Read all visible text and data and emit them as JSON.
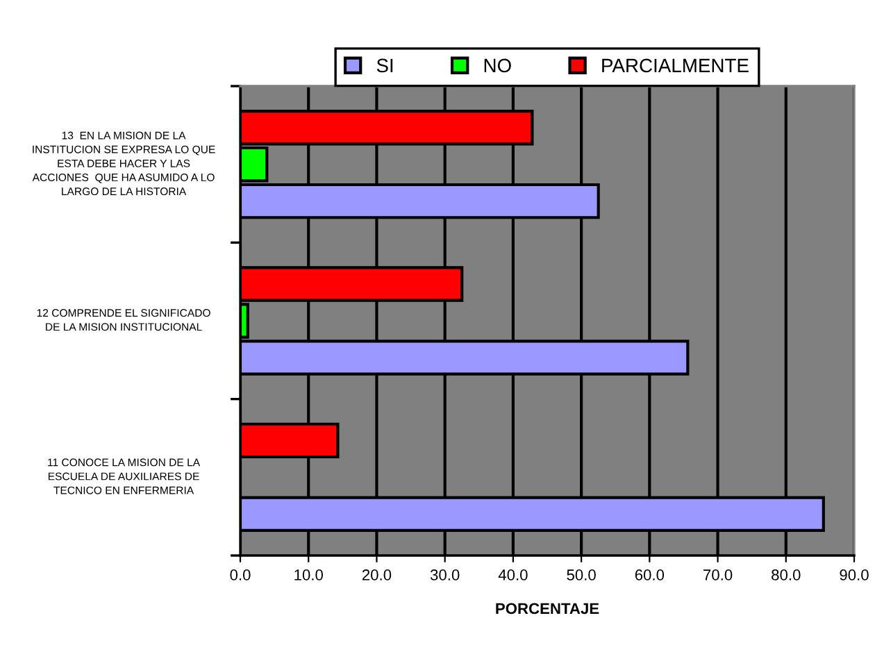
{
  "chart_data": {
    "type": "bar",
    "orientation": "horizontal",
    "xlabel": "PORCENTAJE",
    "categories": [
      "13  EN LA MISION DE LA\nINSTITUCION SE EXPRESA LO QUE\nESTA DEBE HACER Y LAS\nACCIONES  QUE HA ASUMIDO A LO\nLARGO DE LA HISTORIA",
      "12 COMPRENDE EL SIGNIFICADO\nDE LA MISION INSTITUCIONAL",
      "11 CONOCE LA MISION DE LA\nESCUELA DE AUXILIARES DE\nTECNICO EN ENFERMERIA"
    ],
    "series": [
      {
        "name": "SI",
        "color": "#9999ff",
        "values": [
          52.5,
          65.6,
          85.5
        ]
      },
      {
        "name": "NO",
        "color": "#00ff00",
        "values": [
          3.9,
          1.1,
          null
        ]
      },
      {
        "name": "PARCIALMENTE",
        "color": "#ff0000",
        "values": [
          42.8,
          32.5,
          14.3
        ]
      }
    ],
    "xlim": [
      0,
      90
    ],
    "xticks": [
      {
        "value": 0,
        "label": "0.0"
      },
      {
        "value": 10,
        "label": "10.0"
      },
      {
        "value": 20,
        "label": "20.0"
      },
      {
        "value": 30,
        "label": "30.0"
      },
      {
        "value": 40,
        "label": "40.0"
      },
      {
        "value": 50,
        "label": "50.0"
      },
      {
        "value": 60,
        "label": "60.0"
      },
      {
        "value": 70,
        "label": "70.0"
      },
      {
        "value": 80,
        "label": "80.0"
      },
      {
        "value": 90,
        "label": "90.0"
      }
    ],
    "grid": "x",
    "legend": "top"
  }
}
